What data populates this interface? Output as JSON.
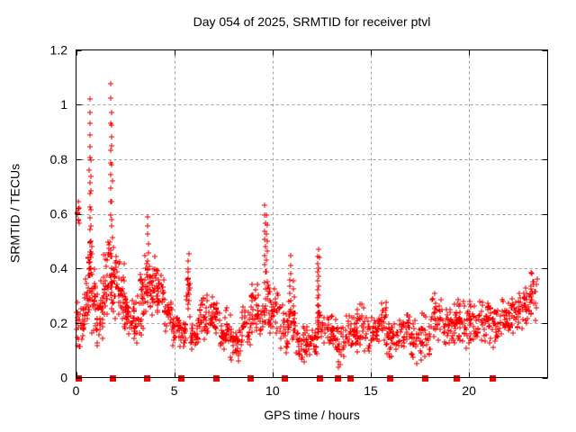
{
  "chart_data": {
    "type": "scatter",
    "title": "Day 054 of 2025, SRMTID for receiver ptvl",
    "xlabel": "GPS time / hours",
    "ylabel": "SRMTID / TECUs",
    "xlim": [
      0,
      24
    ],
    "ylim": [
      0,
      1.2
    ],
    "xticks": [
      0,
      5,
      10,
      15,
      20
    ],
    "xtick_labels": [
      "0",
      "5",
      "10",
      "15",
      "20"
    ],
    "yticks": [
      0,
      0.2,
      0.4,
      0.6,
      0.8,
      1,
      1.2
    ],
    "ytick_labels": [
      "0",
      "0.2",
      "0.4",
      "0.6",
      "0.8",
      "1",
      "1.2"
    ],
    "grid": true,
    "grid_color": "#a0a0a0",
    "marker": {
      "shape": "plus",
      "color": "#ff0000",
      "size": 7
    },
    "zero_marker": {
      "shape": "filled-square",
      "color": "#ff0000",
      "size": 7,
      "y": 0
    },
    "seed": 54,
    "series_name": "SRMTID",
    "band_clusters_format": [
      "x_start_hours",
      "x_end_hours",
      "y_min_TECUs",
      "y_max_TECUs",
      "n_points"
    ],
    "band_clusters": [
      [
        0.0,
        0.18,
        0.54,
        0.66,
        10
      ],
      [
        0.02,
        0.22,
        0.08,
        0.32,
        16
      ],
      [
        0.22,
        0.45,
        0.1,
        0.3,
        20
      ],
      [
        0.45,
        0.65,
        0.18,
        0.38,
        20
      ],
      [
        0.6,
        0.8,
        0.26,
        0.52,
        18
      ],
      [
        0.8,
        1.05,
        0.15,
        0.42,
        28
      ],
      [
        1.05,
        1.35,
        0.1,
        0.38,
        30
      ],
      [
        1.35,
        1.62,
        0.15,
        0.48,
        30
      ],
      [
        1.62,
        1.8,
        0.28,
        0.55,
        18
      ],
      [
        1.8,
        2.1,
        0.2,
        0.52,
        28
      ],
      [
        2.1,
        2.45,
        0.15,
        0.45,
        30
      ],
      [
        2.45,
        2.8,
        0.12,
        0.38,
        28
      ],
      [
        2.8,
        3.15,
        0.1,
        0.34,
        26
      ],
      [
        3.15,
        3.5,
        0.15,
        0.44,
        28
      ],
      [
        3.5,
        3.8,
        0.22,
        0.52,
        24
      ],
      [
        3.8,
        4.1,
        0.2,
        0.46,
        26
      ],
      [
        4.1,
        4.5,
        0.22,
        0.4,
        30
      ],
      [
        4.5,
        4.85,
        0.16,
        0.32,
        26
      ],
      [
        4.85,
        5.3,
        0.1,
        0.26,
        30
      ],
      [
        5.3,
        5.6,
        0.1,
        0.22,
        20
      ],
      [
        5.6,
        5.82,
        0.18,
        0.42,
        14
      ],
      [
        5.82,
        6.25,
        0.07,
        0.22,
        30
      ],
      [
        6.25,
        6.6,
        0.1,
        0.33,
        24
      ],
      [
        6.6,
        7.3,
        0.13,
        0.32,
        48
      ],
      [
        7.3,
        7.85,
        0.07,
        0.26,
        36
      ],
      [
        7.85,
        8.4,
        0.05,
        0.2,
        34
      ],
      [
        8.4,
        8.9,
        0.1,
        0.3,
        30
      ],
      [
        8.9,
        9.35,
        0.13,
        0.37,
        30
      ],
      [
        9.35,
        9.6,
        0.15,
        0.3,
        16
      ],
      [
        9.75,
        10.35,
        0.13,
        0.35,
        40
      ],
      [
        10.35,
        10.8,
        0.08,
        0.28,
        28
      ],
      [
        10.8,
        11.15,
        0.12,
        0.3,
        20
      ],
      [
        11.15,
        11.75,
        0.05,
        0.2,
        36
      ],
      [
        11.75,
        12.25,
        0.06,
        0.2,
        30
      ],
      [
        12.3,
        12.6,
        0.1,
        0.3,
        16
      ],
      [
        12.6,
        13.15,
        0.07,
        0.24,
        32
      ],
      [
        13.15,
        13.65,
        0.02,
        0.22,
        28
      ],
      [
        13.65,
        14.3,
        0.08,
        0.24,
        40
      ],
      [
        14.3,
        14.95,
        0.07,
        0.28,
        38
      ],
      [
        14.95,
        15.45,
        0.08,
        0.25,
        30
      ],
      [
        15.45,
        15.8,
        0.1,
        0.3,
        22
      ],
      [
        15.8,
        16.45,
        0.07,
        0.22,
        38
      ],
      [
        16.45,
        17.05,
        0.1,
        0.25,
        36
      ],
      [
        17.05,
        17.55,
        0.05,
        0.22,
        28
      ],
      [
        17.55,
        18.05,
        0.04,
        0.25,
        26
      ],
      [
        18.05,
        18.6,
        0.12,
        0.31,
        32
      ],
      [
        18.6,
        19.3,
        0.1,
        0.28,
        40
      ],
      [
        19.3,
        19.85,
        0.12,
        0.31,
        36
      ],
      [
        19.85,
        20.45,
        0.1,
        0.3,
        36
      ],
      [
        20.45,
        21.0,
        0.12,
        0.3,
        32
      ],
      [
        21.0,
        21.55,
        0.07,
        0.33,
        30
      ],
      [
        21.55,
        22.15,
        0.12,
        0.3,
        34
      ],
      [
        22.15,
        22.75,
        0.13,
        0.33,
        34
      ],
      [
        22.75,
        23.15,
        0.17,
        0.37,
        26
      ],
      [
        23.15,
        23.5,
        0.2,
        0.41,
        20
      ]
    ],
    "spike_columns_format": [
      "x_hours",
      "y_bottom_TECUs",
      "y_top_TECUs",
      "n_points"
    ],
    "spike_columns": [
      [
        0.71,
        0.45,
        1.02,
        14
      ],
      [
        0.75,
        0.32,
        0.8,
        9
      ],
      [
        1.77,
        0.55,
        1.07,
        12
      ],
      [
        1.81,
        0.38,
        0.92,
        9
      ],
      [
        3.65,
        0.3,
        0.59,
        10
      ],
      [
        5.72,
        0.25,
        0.45,
        8
      ],
      [
        9.62,
        0.2,
        0.63,
        15
      ],
      [
        9.71,
        0.25,
        0.6,
        11
      ],
      [
        10.9,
        0.2,
        0.44,
        10
      ],
      [
        11.08,
        0.15,
        0.35,
        8
      ],
      [
        12.3,
        0.15,
        0.47,
        12
      ],
      [
        12.36,
        0.2,
        0.44,
        8
      ]
    ],
    "zero_marker_x_hours": [
      0.1,
      1.85,
      3.6,
      5.35,
      7.1,
      8.85,
      10.6,
      12.4,
      13.3,
      13.95,
      15.95,
      17.75,
      19.35,
      21.2
    ]
  }
}
